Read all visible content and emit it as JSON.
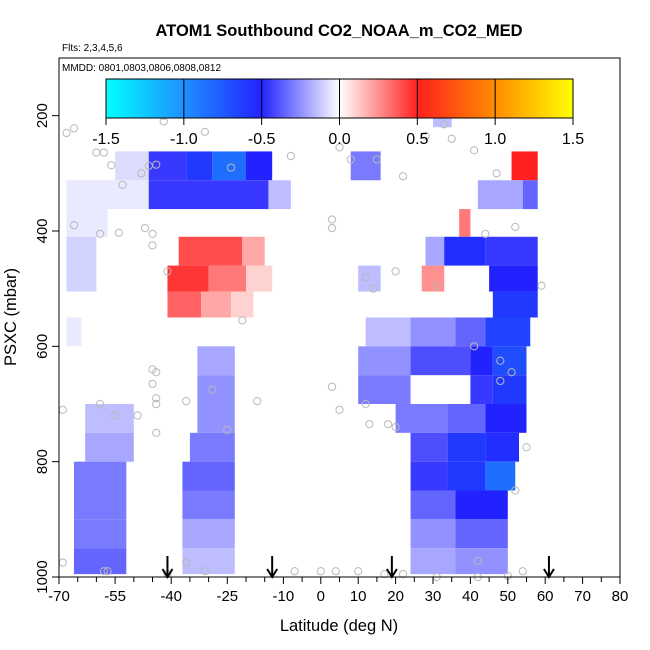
{
  "chart_data": {
    "type": "heatmap",
    "title": "ATOM1 Southbound CO2_NOAA_m_CO2_MED",
    "flights_label": "Flts: 2,3,4,5,6",
    "dates_label": "MMDD: 0801,0803,0806,0808,0812",
    "xlabel": "Latitude (deg N)",
    "ylabel": "PSXC (mbar)",
    "xlim": [
      -70,
      80
    ],
    "ylim": [
      1000,
      100
    ],
    "x_ticks": [
      -70,
      -55,
      -40,
      -25,
      -10,
      0,
      10,
      20,
      30,
      40,
      50,
      60,
      70,
      80
    ],
    "x_minor_ticks": [
      -65,
      -60,
      -50,
      -45,
      -35,
      -30,
      -20,
      -15,
      -5,
      5,
      15,
      25,
      35,
      45,
      55,
      65,
      75
    ],
    "y_ticks": [
      200,
      400,
      600,
      800,
      1000
    ],
    "colorbar": {
      "range": [
        -1.5,
        1.5
      ],
      "ticks": [
        -1.5,
        -1.0,
        -0.5,
        0.0,
        0.5,
        1.0,
        1.5
      ],
      "tick_labels": [
        "-1.5",
        "-1.0",
        "-0.5",
        "0.0",
        "0.5",
        "1.0",
        "1.5"
      ],
      "stops": [
        {
          "v": -1.5,
          "c": "#00ffff"
        },
        {
          "v": -1.0,
          "c": "#1e90ff"
        },
        {
          "v": -0.5,
          "c": "#2222ff"
        },
        {
          "v": 0.0,
          "c": "#ffffff"
        },
        {
          "v": 0.5,
          "c": "#ff2020"
        },
        {
          "v": 1.0,
          "c": "#ff8c00"
        },
        {
          "v": 1.5,
          "c": "#ffff00"
        }
      ]
    },
    "profile_latitudes": [
      -41,
      -13,
      19,
      61
    ],
    "cells": [
      {
        "lat": [
          30,
          35
        ],
        "p": [
          165,
          220
        ],
        "v": -0.15
      },
      {
        "lat": [
          -55,
          -46
        ],
        "p": [
          262,
          312
        ],
        "v": -0.08
      },
      {
        "lat": [
          -46,
          -36
        ],
        "p": [
          262,
          312
        ],
        "v": -0.45
      },
      {
        "lat": [
          -36,
          -29
        ],
        "p": [
          262,
          312
        ],
        "v": -0.6
      },
      {
        "lat": [
          -29,
          -20
        ],
        "p": [
          262,
          312
        ],
        "v": -0.85
      },
      {
        "lat": [
          -20,
          -13
        ],
        "p": [
          262,
          312
        ],
        "v": -0.5
      },
      {
        "lat": [
          8,
          16
        ],
        "p": [
          262,
          312
        ],
        "v": -0.3
      },
      {
        "lat": [
          51,
          58
        ],
        "p": [
          262,
          312
        ],
        "v": 0.5
      },
      {
        "lat": [
          -68,
          -46
        ],
        "p": [
          312,
          362
        ],
        "v": -0.05
      },
      {
        "lat": [
          -46,
          -14
        ],
        "p": [
          312,
          362
        ],
        "v": -0.45
      },
      {
        "lat": [
          -14,
          -8
        ],
        "p": [
          312,
          362
        ],
        "v": -0.15
      },
      {
        "lat": [
          42,
          54
        ],
        "p": [
          312,
          362
        ],
        "v": -0.2
      },
      {
        "lat": [
          54,
          58
        ],
        "p": [
          312,
          362
        ],
        "v": -0.35
      },
      {
        "lat": [
          -68,
          -57
        ],
        "p": [
          362,
          410
        ],
        "v": -0.05
      },
      {
        "lat": [
          37,
          40
        ],
        "p": [
          362,
          410
        ],
        "v": 0.3
      },
      {
        "lat": [
          -68,
          -60
        ],
        "p": [
          410,
          460
        ],
        "v": -0.1
      },
      {
        "lat": [
          -38,
          -21
        ],
        "p": [
          410,
          460
        ],
        "v": 0.4
      },
      {
        "lat": [
          -21,
          -15
        ],
        "p": [
          410,
          460
        ],
        "v": 0.2
      },
      {
        "lat": [
          28,
          33
        ],
        "p": [
          410,
          460
        ],
        "v": -0.2
      },
      {
        "lat": [
          33,
          44
        ],
        "p": [
          410,
          460
        ],
        "v": -0.55
      },
      {
        "lat": [
          44,
          58
        ],
        "p": [
          410,
          460
        ],
        "v": -0.45
      },
      {
        "lat": [
          -68,
          -60
        ],
        "p": [
          460,
          505
        ],
        "v": -0.1
      },
      {
        "lat": [
          -41,
          -30
        ],
        "p": [
          460,
          505
        ],
        "v": 0.45
      },
      {
        "lat": [
          -30,
          -20
        ],
        "p": [
          460,
          505
        ],
        "v": 0.3
      },
      {
        "lat": [
          -20,
          -13
        ],
        "p": [
          460,
          505
        ],
        "v": 0.1
      },
      {
        "lat": [
          10,
          16
        ],
        "p": [
          460,
          505
        ],
        "v": -0.15
      },
      {
        "lat": [
          27,
          33
        ],
        "p": [
          460,
          505
        ],
        "v": 0.25
      },
      {
        "lat": [
          45,
          58
        ],
        "p": [
          460,
          505
        ],
        "v": -0.5
      },
      {
        "lat": [
          -41,
          -32
        ],
        "p": [
          505,
          550
        ],
        "v": 0.35
      },
      {
        "lat": [
          -32,
          -24
        ],
        "p": [
          505,
          550
        ],
        "v": 0.2
      },
      {
        "lat": [
          -24,
          -18
        ],
        "p": [
          505,
          550
        ],
        "v": 0.1
      },
      {
        "lat": [
          46,
          58
        ],
        "p": [
          505,
          550
        ],
        "v": -0.6
      },
      {
        "lat": [
          -68,
          -64
        ],
        "p": [
          550,
          600
        ],
        "v": -0.05
      },
      {
        "lat": [
          12,
          24
        ],
        "p": [
          550,
          600
        ],
        "v": -0.15
      },
      {
        "lat": [
          24,
          36
        ],
        "p": [
          550,
          600
        ],
        "v": -0.25
      },
      {
        "lat": [
          36,
          44
        ],
        "p": [
          550,
          600
        ],
        "v": -0.35
      },
      {
        "lat": [
          44,
          56
        ],
        "p": [
          550,
          600
        ],
        "v": -0.65
      },
      {
        "lat": [
          -33,
          -23
        ],
        "p": [
          600,
          650
        ],
        "v": -0.2
      },
      {
        "lat": [
          10,
          24
        ],
        "p": [
          600,
          650
        ],
        "v": -0.25
      },
      {
        "lat": [
          24,
          40
        ],
        "p": [
          600,
          650
        ],
        "v": -0.4
      },
      {
        "lat": [
          40,
          46
        ],
        "p": [
          600,
          650
        ],
        "v": -0.5
      },
      {
        "lat": [
          46,
          55
        ],
        "p": [
          600,
          650
        ],
        "v": -0.7
      },
      {
        "lat": [
          -33,
          -23
        ],
        "p": [
          650,
          700
        ],
        "v": -0.25
      },
      {
        "lat": [
          10,
          24
        ],
        "p": [
          650,
          700
        ],
        "v": -0.3
      },
      {
        "lat": [
          40,
          46
        ],
        "p": [
          650,
          700
        ],
        "v": -0.45
      },
      {
        "lat": [
          46,
          55
        ],
        "p": [
          650,
          700
        ],
        "v": -0.6
      },
      {
        "lat": [
          -63,
          -50
        ],
        "p": [
          700,
          750
        ],
        "v": -0.15
      },
      {
        "lat": [
          -33,
          -23
        ],
        "p": [
          700,
          750
        ],
        "v": -0.25
      },
      {
        "lat": [
          20,
          34
        ],
        "p": [
          700,
          750
        ],
        "v": -0.3
      },
      {
        "lat": [
          34,
          44
        ],
        "p": [
          700,
          750
        ],
        "v": -0.35
      },
      {
        "lat": [
          44,
          55
        ],
        "p": [
          700,
          750
        ],
        "v": -0.5
      },
      {
        "lat": [
          -63,
          -50
        ],
        "p": [
          750,
          800
        ],
        "v": -0.2
      },
      {
        "lat": [
          -35,
          -23
        ],
        "p": [
          750,
          800
        ],
        "v": -0.3
      },
      {
        "lat": [
          24,
          34
        ],
        "p": [
          750,
          800
        ],
        "v": -0.4
      },
      {
        "lat": [
          34,
          44
        ],
        "p": [
          750,
          800
        ],
        "v": -0.6
      },
      {
        "lat": [
          44,
          53
        ],
        "p": [
          750,
          800
        ],
        "v": -0.55
      },
      {
        "lat": [
          -66,
          -52
        ],
        "p": [
          800,
          850
        ],
        "v": -0.3
      },
      {
        "lat": [
          -37,
          -23
        ],
        "p": [
          800,
          850
        ],
        "v": -0.35
      },
      {
        "lat": [
          24,
          34
        ],
        "p": [
          800,
          850
        ],
        "v": -0.45
      },
      {
        "lat": [
          34,
          44
        ],
        "p": [
          800,
          850
        ],
        "v": -0.6
      },
      {
        "lat": [
          44,
          52
        ],
        "p": [
          800,
          850
        ],
        "v": -0.85
      },
      {
        "lat": [
          -66,
          -52
        ],
        "p": [
          850,
          900
        ],
        "v": -0.3
      },
      {
        "lat": [
          -37,
          -23
        ],
        "p": [
          850,
          900
        ],
        "v": -0.3
      },
      {
        "lat": [
          24,
          36
        ],
        "p": [
          850,
          900
        ],
        "v": -0.35
      },
      {
        "lat": [
          36,
          50
        ],
        "p": [
          850,
          900
        ],
        "v": -0.5
      },
      {
        "lat": [
          -66,
          -52
        ],
        "p": [
          900,
          950
        ],
        "v": -0.3
      },
      {
        "lat": [
          -37,
          -23
        ],
        "p": [
          900,
          950
        ],
        "v": -0.2
      },
      {
        "lat": [
          24,
          36
        ],
        "p": [
          900,
          950
        ],
        "v": -0.25
      },
      {
        "lat": [
          36,
          50
        ],
        "p": [
          900,
          950
        ],
        "v": -0.35
      },
      {
        "lat": [
          -66,
          -52
        ],
        "p": [
          950,
          995
        ],
        "v": -0.35
      },
      {
        "lat": [
          -37,
          -23
        ],
        "p": [
          950,
          995
        ],
        "v": -0.15
      },
      {
        "lat": [
          24,
          36
        ],
        "p": [
          950,
          995
        ],
        "v": -0.2
      },
      {
        "lat": [
          36,
          50
        ],
        "p": [
          950,
          995
        ],
        "v": -0.25
      }
    ],
    "points": [
      [
        -68,
        230
      ],
      [
        -66,
        222
      ],
      [
        -60,
        264
      ],
      [
        -58,
        264
      ],
      [
        -56,
        286
      ],
      [
        -53,
        320
      ],
      [
        -48,
        300
      ],
      [
        -46,
        287
      ],
      [
        -44,
        285
      ],
      [
        -42,
        200
      ],
      [
        -42,
        210
      ],
      [
        -31,
        228
      ],
      [
        -66,
        390
      ],
      [
        -59,
        405
      ],
      [
        -54,
        403
      ],
      [
        -47,
        395
      ],
      [
        -45,
        405
      ],
      [
        -45,
        425
      ],
      [
        -41,
        470
      ],
      [
        -24,
        290
      ],
      [
        -8,
        270
      ],
      [
        5,
        255
      ],
      [
        8,
        276
      ],
      [
        15,
        276
      ],
      [
        22,
        305
      ],
      [
        28,
        235
      ],
      [
        28,
        185
      ],
      [
        33,
        215
      ],
      [
        35,
        240
      ],
      [
        41,
        260
      ],
      [
        47,
        300
      ],
      [
        44,
        405
      ],
      [
        52,
        393
      ],
      [
        59,
        495
      ],
      [
        3,
        380
      ],
      [
        3,
        395
      ],
      [
        12,
        480
      ],
      [
        14,
        500
      ],
      [
        20,
        470
      ],
      [
        31,
        495
      ],
      [
        -21,
        555
      ],
      [
        -45,
        640
      ],
      [
        -44,
        645
      ],
      [
        -45,
        665
      ],
      [
        -44,
        690
      ],
      [
        -44,
        700
      ],
      [
        -44,
        750
      ],
      [
        -36,
        695
      ],
      [
        -29,
        675
      ],
      [
        -17,
        695
      ],
      [
        -25,
        745
      ],
      [
        -59,
        700
      ],
      [
        -69,
        710
      ],
      [
        -55,
        720
      ],
      [
        -49,
        720
      ],
      [
        3,
        670
      ],
      [
        5,
        710
      ],
      [
        12,
        700
      ],
      [
        13,
        735
      ],
      [
        18,
        735
      ],
      [
        20,
        740
      ],
      [
        41,
        600
      ],
      [
        48,
        625
      ],
      [
        48,
        660
      ],
      [
        51,
        645
      ],
      [
        55,
        775
      ],
      [
        -69,
        975
      ],
      [
        -58,
        990
      ],
      [
        -57,
        990
      ],
      [
        -36,
        975
      ],
      [
        -31,
        990
      ],
      [
        -7,
        990
      ],
      [
        0,
        990
      ],
      [
        10,
        990
      ],
      [
        17,
        995
      ],
      [
        22,
        995
      ],
      [
        31,
        1000
      ],
      [
        42,
        1000
      ],
      [
        54,
        990
      ],
      [
        42,
        972
      ],
      [
        52,
        850
      ],
      [
        -41,
        995
      ],
      [
        4,
        990
      ],
      [
        50,
        998
      ]
    ]
  }
}
